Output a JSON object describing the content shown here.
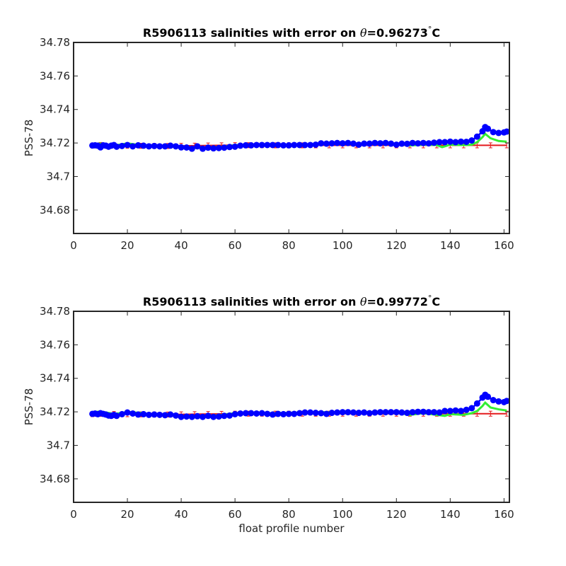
{
  "chart_data": [
    {
      "type": "line",
      "title_prefix": "R5906113 salinities with error on ",
      "title_theta": "θ",
      "title_value": "=0.96273",
      "title_deg": "°",
      "title_unit": "C",
      "ylabel": "PSS-78",
      "xlabel": "",
      "xlim": [
        0,
        162
      ],
      "ylim": [
        34.666,
        34.78
      ],
      "xticks": [
        0,
        20,
        40,
        60,
        80,
        100,
        120,
        140,
        160
      ],
      "yticks": [
        34.68,
        34.7,
        34.72,
        34.74,
        34.76,
        34.78
      ],
      "ytick_labels": [
        "34.68",
        "34.7",
        "34.72",
        "34.74",
        "34.76",
        "34.78"
      ],
      "colors": {
        "red": "#e41a1c",
        "green": "#33ee33",
        "blue": "#0000ff"
      },
      "series": [
        {
          "color": "red",
          "style": "line-errorbar",
          "x": [
            7,
            10,
            15,
            20,
            25,
            30,
            35,
            40,
            45,
            50,
            55,
            60,
            65,
            70,
            75,
            80,
            85,
            90,
            95,
            100,
            105,
            110,
            115,
            120,
            125,
            130,
            135,
            140,
            145,
            150,
            155,
            161
          ],
          "y": [
            34.7185,
            34.7188,
            34.7186,
            34.7184,
            34.7183,
            34.7182,
            34.7182,
            34.7183,
            34.7184,
            34.7185,
            34.7186,
            34.7187,
            34.7187,
            34.7187,
            34.7186,
            34.7186,
            34.7186,
            34.7186,
            34.7186,
            34.7186,
            34.7186,
            34.7186,
            34.7186,
            34.7186,
            34.7186,
            34.7186,
            34.7186,
            34.7186,
            34.7186,
            34.7186,
            34.7186,
            34.7186
          ],
          "err": 0.0015
        },
        {
          "color": "green",
          "style": "line",
          "x": [
            7,
            10,
            15,
            20,
            25,
            30,
            35,
            40,
            45,
            50,
            55,
            60,
            65,
            70,
            75,
            80,
            85,
            90,
            95,
            100,
            105,
            110,
            115,
            120,
            125,
            130,
            135,
            137,
            140,
            145,
            148,
            150,
            152,
            153,
            155,
            158,
            161
          ],
          "y": [
            34.7195,
            34.7196,
            34.7185,
            34.7197,
            34.7188,
            34.7184,
            34.7183,
            34.7174,
            34.717,
            34.7173,
            34.7178,
            34.7187,
            34.719,
            34.719,
            34.719,
            34.719,
            34.719,
            34.7193,
            34.7195,
            34.7195,
            34.7192,
            34.7196,
            34.7195,
            34.7195,
            34.7185,
            34.719,
            34.7188,
            34.7175,
            34.719,
            34.7188,
            34.719,
            34.7205,
            34.7235,
            34.7255,
            34.7228,
            34.7212,
            34.7208
          ]
        },
        {
          "color": "blue",
          "style": "line-marker",
          "x": [
            7,
            8,
            9,
            10,
            11,
            12,
            13,
            14,
            15,
            16,
            18,
            20,
            22,
            24,
            26,
            28,
            30,
            32,
            34,
            36,
            38,
            40,
            42,
            44,
            46,
            48,
            50,
            52,
            54,
            56,
            58,
            60,
            62,
            64,
            66,
            68,
            70,
            72,
            74,
            76,
            78,
            80,
            82,
            84,
            86,
            88,
            90,
            92,
            94,
            96,
            98,
            100,
            102,
            104,
            106,
            108,
            110,
            112,
            114,
            116,
            118,
            120,
            122,
            124,
            126,
            128,
            130,
            132,
            134,
            136,
            138,
            140,
            142,
            144,
            146,
            148,
            150,
            152,
            153,
            154,
            156,
            158,
            160,
            161
          ],
          "y": [
            34.7185,
            34.7186,
            34.7184,
            34.7174,
            34.7186,
            34.7184,
            34.7178,
            34.7184,
            34.7188,
            34.7178,
            34.7182,
            34.7188,
            34.718,
            34.7186,
            34.7184,
            34.718,
            34.7182,
            34.718,
            34.718,
            34.7184,
            34.718,
            34.7174,
            34.7173,
            34.7166,
            34.718,
            34.7166,
            34.7172,
            34.7168,
            34.717,
            34.7172,
            34.7176,
            34.7178,
            34.7184,
            34.7186,
            34.7186,
            34.7188,
            34.7188,
            34.7188,
            34.7188,
            34.7188,
            34.7186,
            34.7186,
            34.7188,
            34.7188,
            34.7188,
            34.7188,
            34.719,
            34.7198,
            34.7196,
            34.7198,
            34.72,
            34.7198,
            34.72,
            34.7196,
            34.719,
            34.7196,
            34.7196,
            34.72,
            34.7198,
            34.72,
            34.7196,
            34.719,
            34.7196,
            34.7195,
            34.72,
            34.7198,
            34.72,
            34.7198,
            34.7202,
            34.7205,
            34.7205,
            34.7208,
            34.7205,
            34.7208,
            34.7207,
            34.7215,
            34.7238,
            34.727,
            34.7295,
            34.7285,
            34.7265,
            34.726,
            34.7263,
            34.7268
          ]
        }
      ]
    },
    {
      "type": "line",
      "title_prefix": "R5906113 salinities with error on ",
      "title_theta": "θ",
      "title_value": "=0.99772",
      "title_deg": "°",
      "title_unit": "C",
      "ylabel": "PSS-78",
      "xlabel": "float profile number",
      "xlim": [
        0,
        162
      ],
      "ylim": [
        34.666,
        34.78
      ],
      "xticks": [
        0,
        20,
        40,
        60,
        80,
        100,
        120,
        140,
        160
      ],
      "yticks": [
        34.68,
        34.7,
        34.72,
        34.74,
        34.76,
        34.78
      ],
      "ytick_labels": [
        "34.68",
        "34.7",
        "34.72",
        "34.74",
        "34.76",
        "34.78"
      ],
      "colors": {
        "red": "#e41a1c",
        "green": "#33ee33",
        "blue": "#0000ff"
      },
      "series": [
        {
          "color": "red",
          "style": "line-errorbar",
          "x": [
            7,
            10,
            15,
            20,
            25,
            30,
            35,
            40,
            45,
            50,
            55,
            60,
            65,
            70,
            75,
            80,
            85,
            90,
            95,
            100,
            105,
            110,
            115,
            120,
            125,
            130,
            135,
            140,
            145,
            150,
            155,
            161
          ],
          "y": [
            34.7186,
            34.7188,
            34.7187,
            34.7186,
            34.7185,
            34.7184,
            34.7184,
            34.7185,
            34.7186,
            34.7187,
            34.7188,
            34.7189,
            34.7189,
            34.7189,
            34.7189,
            34.7189,
            34.7189,
            34.7189,
            34.7189,
            34.7189,
            34.7189,
            34.7189,
            34.7189,
            34.7189,
            34.7189,
            34.7189,
            34.7189,
            34.7189,
            34.7189,
            34.7189,
            34.7189,
            34.7189
          ],
          "err": 0.0015
        },
        {
          "color": "green",
          "style": "line",
          "x": [
            7,
            10,
            15,
            20,
            25,
            30,
            35,
            40,
            45,
            50,
            55,
            60,
            65,
            70,
            75,
            80,
            85,
            90,
            95,
            100,
            105,
            110,
            115,
            120,
            125,
            130,
            135,
            138,
            140,
            145,
            148,
            150,
            152,
            153,
            155,
            158,
            161
          ],
          "y": [
            34.7198,
            34.7202,
            34.7188,
            34.7198,
            34.7194,
            34.7182,
            34.7186,
            34.7176,
            34.7172,
            34.7174,
            34.7182,
            34.7192,
            34.7194,
            34.7192,
            34.7192,
            34.7194,
            34.7196,
            34.7198,
            34.7198,
            34.7198,
            34.7196,
            34.7198,
            34.7198,
            34.7196,
            34.7182,
            34.7192,
            34.7182,
            34.7176,
            34.7186,
            34.7182,
            34.7192,
            34.7205,
            34.7235,
            34.7255,
            34.7226,
            34.7215,
            34.7208
          ]
        },
        {
          "color": "blue",
          "style": "line-marker",
          "x": [
            7,
            8,
            9,
            10,
            11,
            12,
            13,
            14,
            15,
            16,
            18,
            20,
            22,
            24,
            26,
            28,
            30,
            32,
            34,
            36,
            38,
            40,
            42,
            44,
            46,
            48,
            50,
            52,
            54,
            56,
            58,
            60,
            62,
            64,
            66,
            68,
            70,
            72,
            74,
            76,
            78,
            80,
            82,
            84,
            86,
            88,
            90,
            92,
            94,
            96,
            98,
            100,
            102,
            104,
            106,
            108,
            110,
            112,
            114,
            116,
            118,
            120,
            122,
            124,
            126,
            128,
            130,
            132,
            134,
            136,
            138,
            140,
            142,
            144,
            146,
            148,
            150,
            152,
            153,
            154,
            156,
            158,
            160,
            161
          ],
          "y": [
            34.7188,
            34.719,
            34.7186,
            34.7192,
            34.7188,
            34.7184,
            34.7178,
            34.7176,
            34.7182,
            34.7176,
            34.7186,
            34.7196,
            34.719,
            34.7184,
            34.7186,
            34.7182,
            34.7184,
            34.7182,
            34.718,
            34.7184,
            34.7178,
            34.717,
            34.7172,
            34.717,
            34.7174,
            34.717,
            34.7176,
            34.717,
            34.7172,
            34.7176,
            34.7178,
            34.7186,
            34.719,
            34.7192,
            34.7192,
            34.719,
            34.7192,
            34.7188,
            34.7184,
            34.7188,
            34.7186,
            34.7188,
            34.7188,
            34.7192,
            34.7196,
            34.7196,
            34.7194,
            34.7192,
            34.7188,
            34.7194,
            34.7196,
            34.7198,
            34.7198,
            34.7196,
            34.7194,
            34.7196,
            34.7192,
            34.7196,
            34.7198,
            34.7198,
            34.7198,
            34.7198,
            34.7196,
            34.7194,
            34.7198,
            34.72,
            34.72,
            34.7198,
            34.7198,
            34.7196,
            34.7205,
            34.7205,
            34.7208,
            34.7205,
            34.7212,
            34.7222,
            34.725,
            34.7285,
            34.7302,
            34.729,
            34.727,
            34.7262,
            34.7258,
            34.7265
          ]
        }
      ]
    }
  ]
}
